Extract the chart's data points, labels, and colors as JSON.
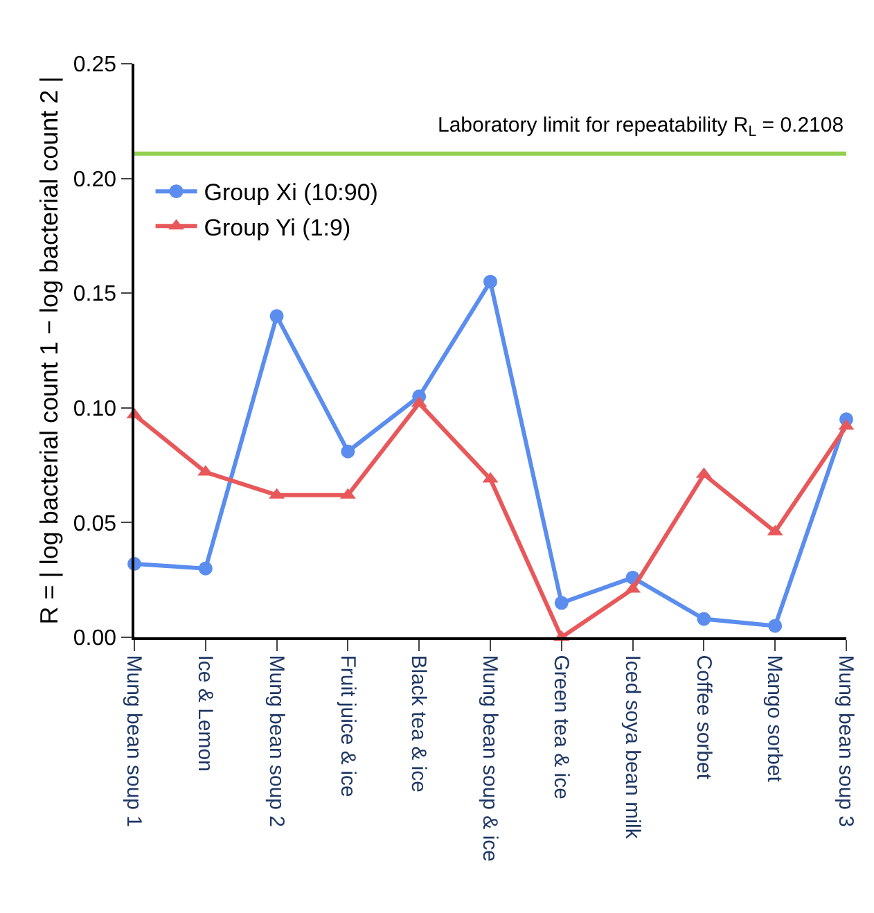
{
  "chart_data": {
    "type": "line",
    "ylabel": "R = | log bacterial count 1 − log bacterial count 2 |",
    "categories": [
      "Mung bean soup 1",
      "Ice & Lemon",
      "Mung bean soup 2",
      "Fruit juice & ice",
      "Black tea & ice",
      "Mung bean soup & ice",
      "Green tea & ice",
      "Iced soya bean milk",
      "Coffee sorbet",
      "Mango sorbet",
      "Mung bean soup 3"
    ],
    "series": [
      {
        "name": "Group Xi (10:90)",
        "color": "#5b8def",
        "marker": "circle",
        "values": [
          0.032,
          0.03,
          0.14,
          0.081,
          0.105,
          0.155,
          0.015,
          0.026,
          0.008,
          0.005,
          0.095
        ]
      },
      {
        "name": "Group Yi (1:9)",
        "color": "#e8585a",
        "marker": "triangle",
        "values": [
          0.097,
          0.072,
          0.062,
          0.062,
          0.102,
          0.069,
          0.0,
          0.021,
          0.071,
          0.046,
          0.092
        ]
      }
    ],
    "ylim": [
      0,
      0.25
    ],
    "yticks": [
      {
        "value": 0,
        "label": "0.00"
      },
      {
        "value": 0.05,
        "label": "0.05"
      },
      {
        "value": 0.1,
        "label": "0.10"
      },
      {
        "value": 0.15,
        "label": "0.15"
      },
      {
        "value": 0.2,
        "label": "0.20"
      },
      {
        "value": 0.25,
        "label": "0.25"
      }
    ],
    "ref_lines": [
      {
        "axis": "y",
        "value": 0.2108,
        "label": "Laboratory limit for repeatability R$_{L}$ = 0.2108",
        "color": "#92d050",
        "line_style": "solid"
      }
    ],
    "legend": "top left",
    "line_style": "solid"
  }
}
